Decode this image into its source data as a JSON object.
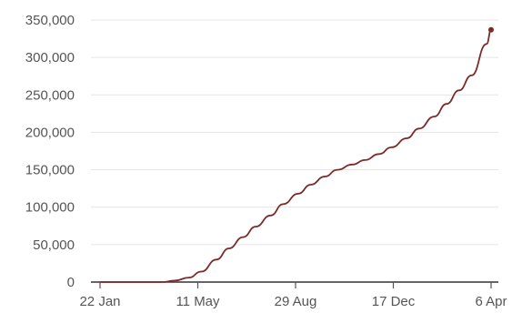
{
  "chart_data": {
    "type": "line",
    "xlabel": "",
    "ylabel": "",
    "x_tick_labels": [
      "22 Jan",
      "11 May",
      "29 Aug",
      "17 Dec",
      "6 Apr"
    ],
    "y_tick_labels": [
      "0",
      "50,000",
      "100,000",
      "150,000",
      "200,000",
      "250,000",
      "300,000",
      "350,000"
    ],
    "y_ticks": [
      0,
      50000,
      100000,
      150000,
      200000,
      250000,
      300000,
      350000
    ],
    "ylim": [
      0,
      350000
    ],
    "x_axis_dates": [
      "2020-01-22",
      "2020-05-11",
      "2020-08-29",
      "2020-12-17",
      "2021-04-06"
    ],
    "xlim": [
      "2020-01-22",
      "2021-04-06"
    ],
    "grid": "horizontal",
    "colors": {
      "line": "#7d2a2a",
      "grid": "#e4e4e4",
      "axis": "#333333"
    },
    "series": [
      {
        "x": [
          "2020-01-22",
          "2020-03-01",
          "2020-04-01",
          "2020-04-15",
          "2020-05-01",
          "2020-05-15",
          "2020-06-01",
          "2020-06-15",
          "2020-07-01",
          "2020-07-15",
          "2020-08-01",
          "2020-08-15",
          "2020-09-01",
          "2020-09-15",
          "2020-10-01",
          "2020-10-15",
          "2020-11-01",
          "2020-11-15",
          "2020-12-01",
          "2020-12-15",
          "2021-01-01",
          "2021-01-15",
          "2021-02-01",
          "2021-02-15",
          "2021-03-01",
          "2021-03-15",
          "2021-04-01",
          "2021-04-06"
        ],
        "values": [
          0,
          0,
          0,
          2000,
          6000,
          14000,
          30000,
          45000,
          60000,
          74000,
          89000,
          104000,
          118000,
          130000,
          141000,
          150000,
          157000,
          163000,
          171000,
          180000,
          192000,
          205000,
          221000,
          238000,
          256000,
          276000,
          318000,
          337000
        ]
      }
    ]
  }
}
